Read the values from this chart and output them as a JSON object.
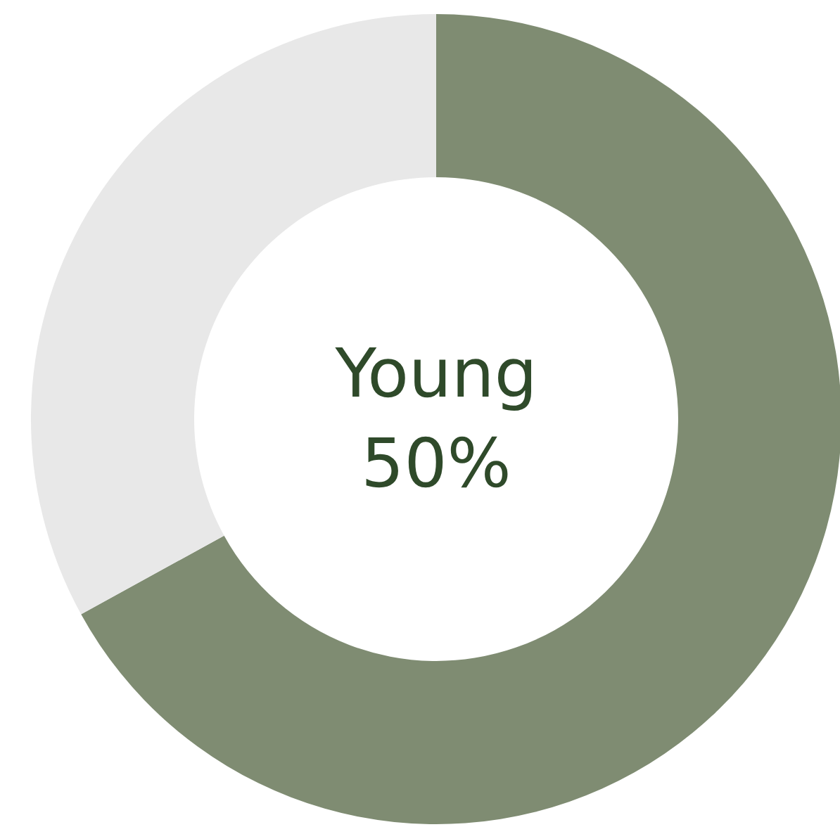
{
  "chart_data": {
    "type": "donut",
    "categories": [
      null,
      null
    ],
    "values": [
      67,
      33
    ],
    "colors": [
      "#7f8c72",
      "#e8e8e8"
    ],
    "annotations": [
      "Young\n50%"
    ]
  }
}
